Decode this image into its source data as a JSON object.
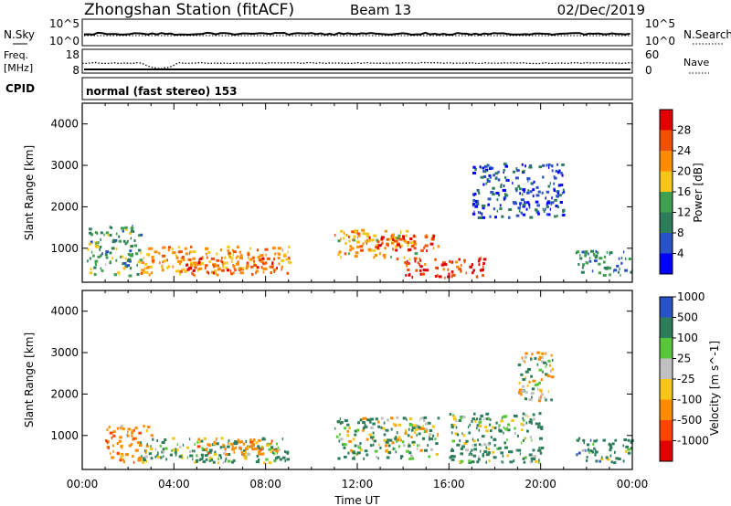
{
  "header": {
    "title": "Zhongshan Station (fitACF)",
    "beam": "Beam 13",
    "date": "02/Dec/2019"
  },
  "strip1": {
    "left_label": "N.Sky",
    "right_label": "N.Search",
    "left_ticks": [
      "10^5",
      "10^0"
    ],
    "right_ticks": [
      "10^5",
      "10^0"
    ]
  },
  "strip2": {
    "left_label_top": "Freq.",
    "left_label_bottom": "[MHz]",
    "right_label": "Nave",
    "left_ticks": [
      "18",
      "8"
    ],
    "right_ticks": [
      "60",
      "0"
    ]
  },
  "cpid": {
    "label": "CPID",
    "text": "normal (fast stereo) 153"
  },
  "colors": {
    "power": [
      "#0000ff",
      "#2a52c8",
      "#2e7d5a",
      "#3fa04f",
      "#f5c518",
      "#ff8c00",
      "#f05000",
      "#e00000"
    ],
    "velocity": [
      "#e00000",
      "#ff4500",
      "#ff8c00",
      "#f5c518",
      "#c0c0c0",
      "#58c83a",
      "#2e7d5a",
      "#2a52c8"
    ]
  },
  "chart_data": [
    {
      "type": "heatmap",
      "title": "",
      "xlabel": "",
      "ylabel": "Slant Range [km]",
      "xlim": [
        "00:00",
        "00:00"
      ],
      "ylim": [
        180,
        4500
      ],
      "x_ticks": [
        "00:00",
        "04:00",
        "08:00",
        "12:00",
        "16:00",
        "20:00",
        "00:00"
      ],
      "y_ticks": [
        1000,
        2000,
        3000,
        4000
      ],
      "colorbar": {
        "label": "Power [dB]",
        "ticks": [
          "4",
          "8",
          "12",
          "16",
          "20",
          "24",
          "28"
        ],
        "range": [
          0,
          30
        ]
      },
      "regions": [
        {
          "t0": 0.2,
          "t1": 2.5,
          "r0": 300,
          "r1": 1500,
          "value": 12
        },
        {
          "t0": 2.5,
          "t1": 9.0,
          "r0": 300,
          "r1": 1000,
          "value": 22
        },
        {
          "t0": 4.5,
          "t1": 8.5,
          "r0": 350,
          "r1": 750,
          "value": 26
        },
        {
          "t0": 11.0,
          "t1": 14.5,
          "r0": 700,
          "r1": 1400,
          "value": 20
        },
        {
          "t0": 12.5,
          "t1": 15.5,
          "r0": 900,
          "r1": 1300,
          "value": 27
        },
        {
          "t0": 14.0,
          "t1": 17.5,
          "r0": 250,
          "r1": 750,
          "value": 28
        },
        {
          "t0": 17.0,
          "t1": 21.0,
          "r0": 1700,
          "r1": 3000,
          "value": 6
        },
        {
          "t0": 21.5,
          "t1": 24.0,
          "r0": 300,
          "r1": 900,
          "value": 11
        }
      ]
    },
    {
      "type": "heatmap",
      "title": "",
      "xlabel": "Time UT",
      "ylabel": "Slant Range [km]",
      "xlim": [
        "00:00",
        "00:00"
      ],
      "ylim": [
        180,
        4500
      ],
      "x_ticks": [
        "00:00",
        "04:00",
        "08:00",
        "12:00",
        "16:00",
        "20:00",
        "00:00"
      ],
      "y_ticks": [
        1000,
        2000,
        3000,
        4000
      ],
      "colorbar": {
        "label": "Velocity [m s^-1]",
        "ticks": [
          "-1000",
          "-500",
          "-100",
          "-25",
          "25",
          "100",
          "500",
          "1000"
        ],
        "range": [
          -1500,
          1500
        ]
      },
      "regions": [
        {
          "t0": 1.0,
          "t1": 3.0,
          "r0": 300,
          "r1": 1200,
          "value": -300
        },
        {
          "t0": 2.5,
          "t1": 9.0,
          "r0": 300,
          "r1": 900,
          "value": 200
        },
        {
          "t0": 5.0,
          "t1": 8.5,
          "r0": 500,
          "r1": 900,
          "value": -300
        },
        {
          "t0": 11.0,
          "t1": 15.5,
          "r0": 400,
          "r1": 1400,
          "value": 120
        },
        {
          "t0": 14.0,
          "t1": 15.0,
          "r0": 900,
          "r1": 1200,
          "value": 0
        },
        {
          "t0": 16.0,
          "t1": 20.0,
          "r0": 300,
          "r1": 1500,
          "value": 200
        },
        {
          "t0": 19.0,
          "t1": 20.5,
          "r0": 1800,
          "r1": 3000,
          "value": 20
        },
        {
          "t0": 21.5,
          "t1": 24.0,
          "r0": 300,
          "r1": 900,
          "value": 250
        }
      ]
    }
  ]
}
